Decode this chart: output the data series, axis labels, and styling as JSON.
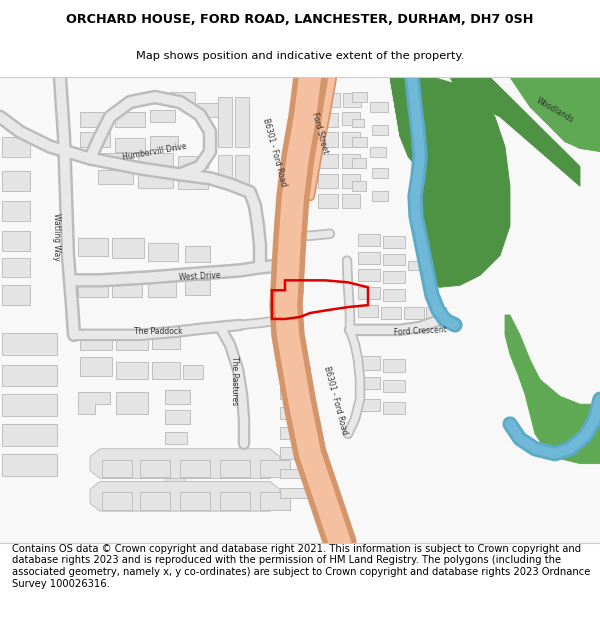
{
  "title": "ORCHARD HOUSE, FORD ROAD, LANCHESTER, DURHAM, DH7 0SH",
  "subtitle": "Map shows position and indicative extent of the property.",
  "footer": "Contains OS data © Crown copyright and database right 2021. This information is subject to Crown copyright and database rights 2023 and is reproduced with the permission of HM Land Registry. The polygons (including the associated geometry, namely x, y co-ordinates) are subject to Crown copyright and database rights 2023 Ordnance Survey 100026316.",
  "bg_color": "#ffffff",
  "map_bg": "#f8f8f8",
  "road_color": "#f5c0a0",
  "road_out": "#d4956a",
  "bld_color": "#e4e4e4",
  "bld_out": "#b8b8b8",
  "green1": "#4e9244",
  "green2": "#5fa854",
  "water": "#70b8d8",
  "plot_red": "#dd0000"
}
